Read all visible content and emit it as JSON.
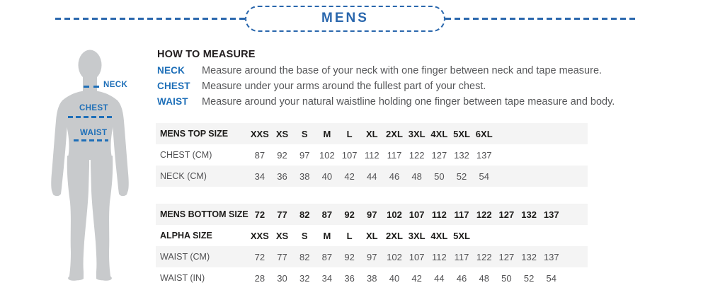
{
  "colors": {
    "blue": "#2a67ad",
    "blue2": "#1e6fb8",
    "ink": "#231f20",
    "band": "#f4f4f4",
    "body-gray": "#c8cacc"
  },
  "header": {
    "title": "MENS"
  },
  "figure": {
    "neck_label": "NECK",
    "chest_label": "CHEST",
    "waist_label": "WAIST"
  },
  "how_to_measure": {
    "heading": "HOW TO MEASURE",
    "rows": [
      {
        "label": "NECK",
        "text": "Measure around the base of your neck with one finger between neck and tape measure."
      },
      {
        "label": "CHEST",
        "text": "Measure under your arms around the fullest part of your chest."
      },
      {
        "label": "WAIST",
        "text": "Measure around your natural waistline holding one finger between tape measure and body."
      }
    ]
  },
  "tables": {
    "top": {
      "header": {
        "label": "MENS TOP SIZE",
        "values": [
          "XXS",
          "XS",
          "S",
          "M",
          "L",
          "XL",
          "2XL",
          "3XL",
          "4XL",
          "5XL",
          "6XL"
        ]
      },
      "chest": {
        "label": "CHEST (CM)",
        "values": [
          "87",
          "92",
          "97",
          "102",
          "107",
          "112",
          "117",
          "122",
          "127",
          "132",
          "137"
        ]
      },
      "neck": {
        "label": "NECK (CM)",
        "values": [
          "34",
          "36",
          "38",
          "40",
          "42",
          "44",
          "46",
          "48",
          "50",
          "52",
          "54"
        ]
      }
    },
    "bottom": {
      "header": {
        "label": "MENS BOTTOM SIZE",
        "values": [
          "72",
          "77",
          "82",
          "87",
          "92",
          "97",
          "102",
          "107",
          "112",
          "117",
          "122",
          "127",
          "132",
          "137"
        ]
      },
      "alpha": {
        "label": "ALPHA SIZE",
        "values": [
          "XXS",
          "XS",
          "S",
          "M",
          "L",
          "XL",
          "2XL",
          "3XL",
          "4XL",
          "5XL"
        ]
      },
      "waist_cm": {
        "label": "WAIST (CM)",
        "values": [
          "72",
          "77",
          "82",
          "87",
          "92",
          "97",
          "102",
          "107",
          "112",
          "117",
          "122",
          "127",
          "132",
          "137"
        ]
      },
      "waist_in": {
        "label": "WAIST (IN)",
        "values": [
          "28",
          "30",
          "32",
          "34",
          "36",
          "38",
          "40",
          "42",
          "44",
          "46",
          "48",
          "50",
          "52",
          "54"
        ]
      }
    }
  }
}
